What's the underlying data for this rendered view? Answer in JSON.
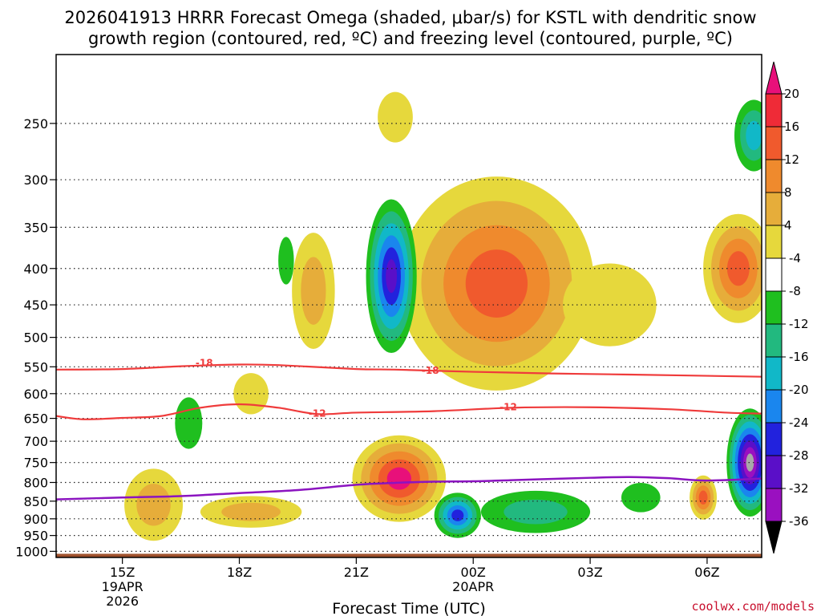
{
  "chart_data": {
    "type": "contour",
    "title_line1": "2026041913 HRRR Forecast Omega (shaded, μbar/s) for KSTL with dendritic snow",
    "title_line2": "growth region (contoured, red, ºC) and freezing level (contoured, purple, ºC)",
    "xlabel": "Forecast Time (UTC)",
    "credit": "coolwx.com/models",
    "y_axis": {
      "scale": "log-pressure",
      "range_mb": [
        1020,
        200
      ],
      "ticks": [
        250,
        300,
        350,
        400,
        450,
        500,
        550,
        600,
        650,
        700,
        750,
        800,
        850,
        900,
        950,
        1000
      ]
    },
    "x_axis": {
      "range_hours": [
        13.3,
        31.4
      ],
      "ticks": [
        {
          "hour": 15,
          "label": "15Z",
          "sub1": "19APR",
          "sub2": "2026"
        },
        {
          "hour": 18,
          "label": "18Z",
          "sub1": "",
          "sub2": ""
        },
        {
          "hour": 21,
          "label": "21Z",
          "sub1": "",
          "sub2": ""
        },
        {
          "hour": 24,
          "label": "00Z",
          "sub1": "20APR",
          "sub2": ""
        },
        {
          "hour": 27,
          "label": "03Z",
          "sub1": "",
          "sub2": ""
        },
        {
          "hour": 30,
          "label": "06Z",
          "sub1": "",
          "sub2": ""
        }
      ]
    },
    "colorbar": {
      "levels": [
        20,
        16,
        12,
        8,
        4,
        -4,
        -8,
        -12,
        -16,
        -20,
        -24,
        -28,
        -32,
        -36
      ],
      "colors_top_to_bottom": [
        "#e8107a",
        "#ef2b37",
        "#f05a2d",
        "#ef8a2d",
        "#e6ad3a",
        "#e6d83c",
        "#ffffff",
        "#1fbf1f",
        "#22b97f",
        "#11b8c8",
        "#1a86ee",
        "#2222dd",
        "#5a0fc8",
        "#9a10c0",
        "#a8a8a8",
        "#000000"
      ]
    },
    "contours": {
      "dgz": {
        "color": "#ef3b3b",
        "lines": [
          {
            "level": -18,
            "label": "-18",
            "points": [
              [
                13.3,
                555
              ],
              [
                15,
                554
              ],
              [
                16.5,
                549
              ],
              [
                18,
                546
              ],
              [
                19,
                547
              ],
              [
                21,
                554
              ],
              [
                22,
                555
              ],
              [
                24,
                559
              ],
              [
                26,
                562
              ],
              [
                28,
                564
              ],
              [
                31.4,
                568
              ]
            ]
          },
          {
            "level": -12,
            "label": "-12",
            "points": [
              [
                13.3,
                645
              ],
              [
                14,
                652
              ],
              [
                15,
                649
              ],
              [
                16,
                645
              ],
              [
                17,
                628
              ],
              [
                18,
                621
              ],
              [
                19,
                628
              ],
              [
                20,
                641
              ],
              [
                21,
                638
              ],
              [
                23,
                635
              ],
              [
                25,
                628
              ],
              [
                27,
                627
              ],
              [
                29,
                631
              ],
              [
                30.5,
                638
              ],
              [
                31.4,
                640
              ]
            ]
          }
        ],
        "labels": [
          {
            "text": "-18",
            "hour": 17.1,
            "mb": 543
          },
          {
            "text": "-18",
            "hour": 22.9,
            "mb": 557
          },
          {
            "text": "-12",
            "hour": 20.0,
            "mb": 640
          },
          {
            "text": "-12",
            "hour": 24.9,
            "mb": 627
          }
        ]
      },
      "freezing_level": {
        "color": "#8b14c0",
        "points": [
          [
            13.3,
            845
          ],
          [
            15,
            840
          ],
          [
            16.5,
            836
          ],
          [
            18,
            828
          ],
          [
            19.5,
            820
          ],
          [
            21,
            806
          ],
          [
            22,
            801
          ],
          [
            23,
            798
          ],
          [
            24,
            797
          ],
          [
            25,
            794
          ],
          [
            26,
            791
          ],
          [
            27,
            788
          ],
          [
            28,
            786
          ],
          [
            29,
            789
          ],
          [
            30,
            795
          ],
          [
            31.4,
            790
          ]
        ]
      }
    },
    "omega_features": [
      {
        "hour": 22.0,
        "mb": 245,
        "dh": 0.45,
        "dmb": 40,
        "levels": [
          4
        ]
      },
      {
        "hour": 15.8,
        "mb": 860,
        "dh": 0.75,
        "dmb": 200,
        "levels": [
          4,
          8
        ]
      },
      {
        "hour": 18.3,
        "mb": 880,
        "dh": 1.3,
        "dmb": 90,
        "levels": [
          4,
          8
        ]
      },
      {
        "hour": 18.3,
        "mb": 600,
        "dh": 0.45,
        "dmb": 80,
        "levels": [
          4
        ]
      },
      {
        "hour": 19.9,
        "mb": 430,
        "dh": 0.55,
        "dmb": 160,
        "levels": [
          4,
          8
        ]
      },
      {
        "hour": 22.1,
        "mb": 790,
        "dh": 1.2,
        "dmb": 220,
        "levels": [
          4,
          8,
          12,
          16,
          20
        ]
      },
      {
        "hour": 24.6,
        "mb": 420,
        "dh": 2.5,
        "dmb": 280,
        "levels": [
          4,
          8,
          12,
          16
        ]
      },
      {
        "hour": 27.5,
        "mb": 450,
        "dh": 1.2,
        "dmb": 120,
        "levels": [
          4
        ]
      },
      {
        "hour": 30.8,
        "mb": 400,
        "dh": 0.9,
        "dmb": 140,
        "levels": [
          4,
          8,
          12,
          16
        ]
      },
      {
        "hour": 29.9,
        "mb": 840,
        "dh": 0.35,
        "dmb": 120,
        "levels": [
          4,
          8,
          12,
          16
        ]
      },
      {
        "hour": 21.9,
        "mb": 410,
        "dh": 0.65,
        "dmb": 200,
        "levels": [
          -4,
          -8,
          -12,
          -16,
          -20,
          -24
        ]
      },
      {
        "hour": 16.7,
        "mb": 660,
        "dh": 0.35,
        "dmb": 110,
        "levels": [
          -4
        ]
      },
      {
        "hour": 19.2,
        "mb": 390,
        "dh": 0.2,
        "dmb": 60,
        "levels": [
          -4
        ]
      },
      {
        "hour": 23.6,
        "mb": 890,
        "dh": 0.6,
        "dmb": 130,
        "levels": [
          -4,
          -8,
          -12,
          -16,
          -20
        ]
      },
      {
        "hour": 25.6,
        "mb": 880,
        "dh": 1.4,
        "dmb": 120,
        "levels": [
          -4,
          -8
        ]
      },
      {
        "hour": 28.3,
        "mb": 840,
        "dh": 0.5,
        "dmb": 80,
        "levels": [
          -4
        ]
      },
      {
        "hour": 31.1,
        "mb": 750,
        "dh": 0.6,
        "dmb": 260,
        "levels": [
          -4,
          -8,
          -12,
          -16,
          -20,
          -24,
          -28,
          -32
        ]
      },
      {
        "hour": 31.2,
        "mb": 260,
        "dh": 0.5,
        "dmb": 60,
        "levels": [
          -4,
          -8,
          -12
        ]
      }
    ],
    "ground": {
      "top_mb": 1008,
      "color": "#a0522d"
    }
  }
}
